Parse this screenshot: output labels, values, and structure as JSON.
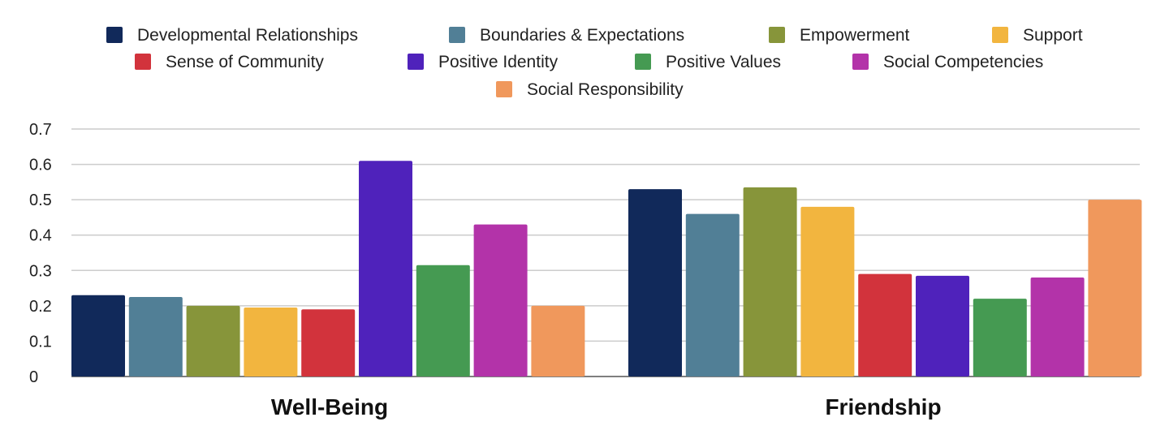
{
  "chart_data": {
    "type": "bar",
    "categories": [
      "Well-Being",
      "Friendship"
    ],
    "series": [
      {
        "name": "Developmental Relationships",
        "color": "#11295a",
        "values": [
          0.23,
          0.53
        ]
      },
      {
        "name": "Boundaries & Expectations",
        "color": "#517f96",
        "values": [
          0.225,
          0.46
        ]
      },
      {
        "name": "Empowerment",
        "color": "#87953a",
        "values": [
          0.2,
          0.535
        ]
      },
      {
        "name": "Support",
        "color": "#f2b53f",
        "values": [
          0.195,
          0.48
        ]
      },
      {
        "name": "Sense of Community",
        "color": "#d2333c",
        "values": [
          0.19,
          0.29
        ]
      },
      {
        "name": "Positive Identity",
        "color": "#4f22bb",
        "values": [
          0.61,
          0.285
        ]
      },
      {
        "name": "Positive Values",
        "color": "#459a52",
        "values": [
          0.315,
          0.22
        ]
      },
      {
        "name": "Social Competencies",
        "color": "#b333a9",
        "values": [
          0.43,
          0.28
        ]
      },
      {
        "name": "Social Responsibility",
        "color": "#f0985c",
        "values": [
          0.2,
          0.5
        ]
      }
    ],
    "y_ticks": [
      "0",
      "0.1",
      "0.2",
      "0.3",
      "0.4",
      "0.5",
      "0.6",
      "0.7"
    ],
    "ylim": [
      0,
      0.7
    ],
    "grid": true,
    "legend_position": "top-center"
  }
}
